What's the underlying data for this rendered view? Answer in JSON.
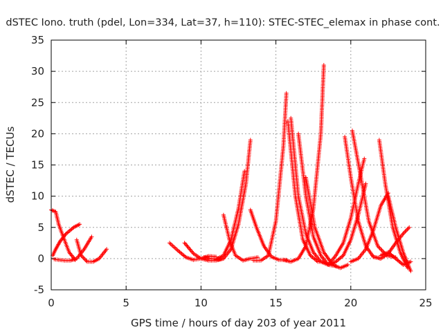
{
  "chart_data": {
    "type": "scatter",
    "title": "dSTEC Iono. truth (pdel, Lon=334, Lat=37, h=110): STEC-STEC_elemax in phase cont.",
    "xlabel": "GPS time / hours of day 203 of year 2011",
    "ylabel": "dSTEC  / TECUs",
    "xlim": [
      0,
      25
    ],
    "ylim": [
      -5,
      35
    ],
    "xticks": [
      0,
      5,
      10,
      15,
      20,
      25
    ],
    "yticks": [
      -5,
      0,
      5,
      10,
      15,
      20,
      25,
      30,
      35
    ],
    "grid": true,
    "marker": "+",
    "color": "#ff0000",
    "series": [
      {
        "x": [
          0.0,
          0.3,
          0.5,
          0.8,
          1.2,
          1.6
        ],
        "y": [
          7.8,
          7.5,
          5.5,
          3.5,
          1.0,
          -0.2
        ]
      },
      {
        "x": [
          0.1,
          0.3,
          0.6,
          1.0,
          1.5,
          1.9
        ],
        "y": [
          0.5,
          1.5,
          2.8,
          4.0,
          5.0,
          5.5
        ]
      },
      {
        "x": [
          0.2,
          0.5,
          0.9,
          1.3,
          1.7,
          2.2,
          2.7
        ],
        "y": [
          -0.1,
          -0.2,
          -0.3,
          -0.3,
          0.0,
          1.5,
          3.5
        ]
      },
      {
        "x": [
          1.7,
          2.0,
          2.4,
          2.8,
          3.2,
          3.7
        ],
        "y": [
          3.0,
          0.5,
          -0.5,
          -0.5,
          0.0,
          1.5
        ]
      },
      {
        "x": [
          7.9,
          8.5,
          9.0,
          9.5,
          10.0,
          10.5,
          11.0
        ],
        "y": [
          2.5,
          1.2,
          0.2,
          -0.2,
          0.0,
          0.4,
          0.3
        ]
      },
      {
        "x": [
          8.9,
          9.5,
          10.0,
          10.5,
          11.0,
          11.5
        ],
        "y": [
          2.5,
          0.8,
          0.0,
          -0.3,
          -0.3,
          0.0
        ]
      },
      {
        "x": [
          10.2,
          10.6,
          11.0,
          11.5,
          12.0,
          12.5,
          12.9
        ],
        "y": [
          0.2,
          0.0,
          -0.1,
          0.5,
          3.0,
          8.0,
          14.0
        ]
      },
      {
        "x": [
          11.5,
          11.9,
          12.3,
          12.8,
          13.3,
          13.8
        ],
        "y": [
          7.0,
          3.0,
          0.5,
          -0.3,
          0.0,
          0.2
        ]
      },
      {
        "x": [
          11.0,
          11.5,
          12.0,
          12.5,
          13.0,
          13.3
        ],
        "y": [
          -0.2,
          0.0,
          1.5,
          5.5,
          12.0,
          19.0
        ]
      },
      {
        "x": [
          13.3,
          13.7,
          14.2,
          14.7,
          15.2,
          15.7
        ],
        "y": [
          7.8,
          5.0,
          2.0,
          0.3,
          -0.2,
          -0.2
        ]
      },
      {
        "x": [
          13.5,
          14.0,
          14.5,
          15.0,
          15.5,
          15.7
        ],
        "y": [
          -0.3,
          -0.3,
          0.5,
          6.0,
          18.0,
          26.5
        ]
      },
      {
        "x": [
          15.8,
          16.3,
          16.8,
          17.3,
          17.8,
          18.2
        ],
        "y": [
          22.0,
          10.0,
          3.0,
          0.5,
          -0.5,
          -0.5
        ]
      },
      {
        "x": [
          15.5,
          16.0,
          16.5,
          17.0,
          17.5,
          18.0,
          18.2
        ],
        "y": [
          -0.2,
          -0.5,
          0.0,
          2.0,
          8.0,
          20.0,
          31.0
        ]
      },
      {
        "x": [
          16.0,
          16.5,
          17.0,
          17.5,
          18.0,
          18.5
        ],
        "y": [
          22.5,
          10.0,
          4.0,
          1.0,
          -0.5,
          -1.0
        ]
      },
      {
        "x": [
          16.5,
          17.0,
          17.5,
          18.0,
          18.5,
          19.0
        ],
        "y": [
          20.0,
          10.0,
          3.5,
          0.5,
          -1.0,
          -1.2
        ]
      },
      {
        "x": [
          17.0,
          17.6,
          18.2,
          18.8,
          19.3,
          19.8
        ],
        "y": [
          13.0,
          5.0,
          1.0,
          -1.0,
          -1.5,
          -1.0
        ]
      },
      {
        "x": [
          18.5,
          19.0,
          19.5,
          20.0,
          20.5,
          21.0
        ],
        "y": [
          -1.0,
          -0.5,
          0.5,
          3.0,
          7.0,
          12.0
        ]
      },
      {
        "x": [
          19.6,
          20.0,
          20.5,
          21.0,
          21.5,
          22.0
        ],
        "y": [
          19.5,
          13.0,
          6.0,
          2.0,
          0.3,
          0.0
        ]
      },
      {
        "x": [
          20.1,
          20.6,
          21.2,
          21.8,
          22.4,
          23.0
        ],
        "y": [
          20.5,
          14.0,
          6.0,
          2.0,
          0.5,
          0.2
        ]
      },
      {
        "x": [
          18.5,
          19.0,
          19.5,
          20.0,
          20.5,
          20.9
        ],
        "y": [
          -1.0,
          0.5,
          2.5,
          6.5,
          12.0,
          16.0
        ]
      },
      {
        "x": [
          20.0,
          20.5,
          21.0,
          21.5,
          22.0,
          22.5
        ],
        "y": [
          -0.5,
          0.0,
          1.5,
          4.5,
          8.5,
          10.5
        ]
      },
      {
        "x": [
          21.9,
          22.3,
          22.8,
          23.3,
          23.8
        ],
        "y": [
          19.0,
          12.0,
          5.0,
          1.0,
          -1.5
        ]
      },
      {
        "x": [
          22.5,
          23.0,
          23.5,
          24.0
        ],
        "y": [
          10.0,
          5.0,
          1.0,
          -2.0
        ]
      },
      {
        "x": [
          21.5,
          22.0,
          22.5,
          23.0,
          23.5,
          23.9
        ],
        "y": [
          0.3,
          0.0,
          0.8,
          2.5,
          4.0,
          5.0
        ]
      },
      {
        "x": [
          22.0,
          22.5,
          23.0,
          23.5,
          24.0
        ],
        "y": [
          0.5,
          1.0,
          0.0,
          -1.0,
          -0.5
        ]
      }
    ]
  }
}
